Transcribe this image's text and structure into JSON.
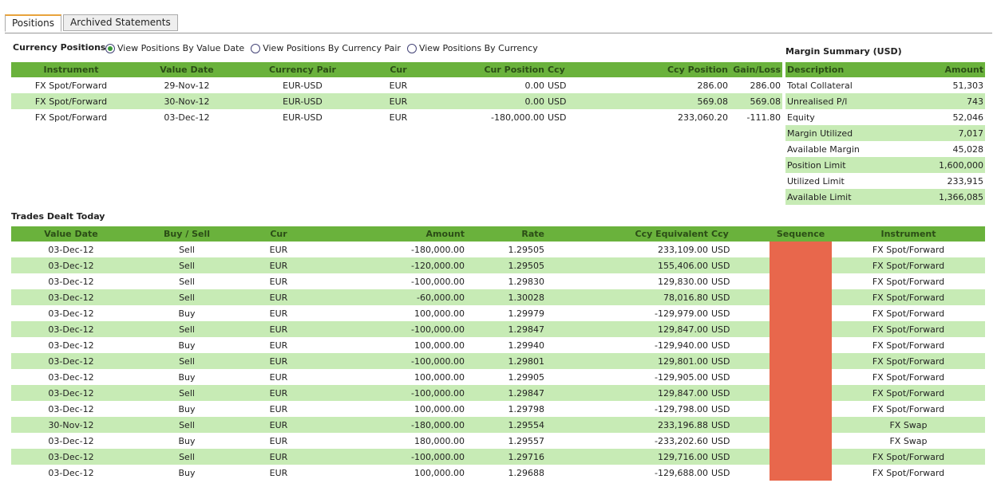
{
  "tabs": [
    {
      "label": "Positions",
      "active": true
    },
    {
      "label": "Archived Statements",
      "active": false
    }
  ],
  "currency_positions": {
    "title": "Currency Positions",
    "radios": [
      {
        "label": "View Positions By Value Date",
        "checked": true
      },
      {
        "label": "View Positions By Currency Pair",
        "checked": false
      },
      {
        "label": "View Positions By Currency",
        "checked": false
      }
    ],
    "columns": [
      "Instrument",
      "Value Date",
      "Currency Pair",
      "Cur",
      "Cur Position",
      "Ccy",
      "Ccy Position",
      "Gain/Loss"
    ],
    "rows": [
      [
        "FX Spot/Forward",
        "29-Nov-12",
        "EUR-USD",
        "EUR",
        "0.00",
        "USD",
        "286.00",
        "286.00"
      ],
      [
        "FX Spot/Forward",
        "30-Nov-12",
        "EUR-USD",
        "EUR",
        "0.00",
        "USD",
        "569.08",
        "569.08"
      ],
      [
        "FX Spot/Forward",
        "03-Dec-12",
        "EUR-USD",
        "EUR",
        "-180,000.00",
        "USD",
        "233,060.20",
        "-111.80"
      ]
    ]
  },
  "margin_summary": {
    "title": "Margin Summary (USD)",
    "columns": [
      "Description",
      "Amount"
    ],
    "rows": [
      [
        "Total Collateral",
        "51,303"
      ],
      [
        "Unrealised P/l",
        "743"
      ],
      [
        "Equity",
        "52,046"
      ],
      [
        "Margin Utilized",
        "7,017"
      ],
      [
        "Available Margin",
        "45,028"
      ],
      [
        "Position Limit",
        "1,600,000"
      ],
      [
        "Utilized Limit",
        "233,915"
      ],
      [
        "Available Limit",
        "1,366,085"
      ]
    ]
  },
  "trades": {
    "title": "Trades Dealt Today",
    "columns": [
      "Value Date",
      "Buy / Sell",
      "Cur",
      "Amount",
      "Rate",
      "Ccy Equivalent",
      "Ccy",
      "Sequence",
      "Instrument"
    ],
    "sequence_redaction_color": "#e8674c",
    "rows": [
      [
        "03-Dec-12",
        "Sell",
        "EUR",
        "-180,000.00",
        "1.29505",
        "233,109.00",
        "USD",
        "",
        "FX Spot/Forward"
      ],
      [
        "03-Dec-12",
        "Sell",
        "EUR",
        "-120,000.00",
        "1.29505",
        "155,406.00",
        "USD",
        "",
        "FX Spot/Forward"
      ],
      [
        "03-Dec-12",
        "Sell",
        "EUR",
        "-100,000.00",
        "1.29830",
        "129,830.00",
        "USD",
        "",
        "FX Spot/Forward"
      ],
      [
        "03-Dec-12",
        "Sell",
        "EUR",
        "-60,000.00",
        "1.30028",
        "78,016.80",
        "USD",
        "",
        "FX Spot/Forward"
      ],
      [
        "03-Dec-12",
        "Buy",
        "EUR",
        "100,000.00",
        "1.29979",
        "-129,979.00",
        "USD",
        "",
        "FX Spot/Forward"
      ],
      [
        "03-Dec-12",
        "Sell",
        "EUR",
        "-100,000.00",
        "1.29847",
        "129,847.00",
        "USD",
        "",
        "FX Spot/Forward"
      ],
      [
        "03-Dec-12",
        "Buy",
        "EUR",
        "100,000.00",
        "1.29940",
        "-129,940.00",
        "USD",
        "",
        "FX Spot/Forward"
      ],
      [
        "03-Dec-12",
        "Sell",
        "EUR",
        "-100,000.00",
        "1.29801",
        "129,801.00",
        "USD",
        "",
        "FX Spot/Forward"
      ],
      [
        "03-Dec-12",
        "Buy",
        "EUR",
        "100,000.00",
        "1.29905",
        "-129,905.00",
        "USD",
        "",
        "FX Spot/Forward"
      ],
      [
        "03-Dec-12",
        "Sell",
        "EUR",
        "-100,000.00",
        "1.29847",
        "129,847.00",
        "USD",
        "",
        "FX Spot/Forward"
      ],
      [
        "03-Dec-12",
        "Buy",
        "EUR",
        "100,000.00",
        "1.29798",
        "-129,798.00",
        "USD",
        "",
        "FX Spot/Forward"
      ],
      [
        "30-Nov-12",
        "Sell",
        "EUR",
        "-180,000.00",
        "1.29554",
        "233,196.88",
        "USD",
        "",
        "FX Swap"
      ],
      [
        "03-Dec-12",
        "Buy",
        "EUR",
        "180,000.00",
        "1.29557",
        "-233,202.60",
        "USD",
        "",
        "FX Swap"
      ],
      [
        "03-Dec-12",
        "Sell",
        "EUR",
        "-100,000.00",
        "1.29716",
        "129,716.00",
        "USD",
        "",
        "FX Spot/Forward"
      ],
      [
        "03-Dec-12",
        "Buy",
        "EUR",
        "100,000.00",
        "1.29688",
        "-129,688.00",
        "USD",
        "",
        "FX Spot/Forward"
      ]
    ]
  }
}
